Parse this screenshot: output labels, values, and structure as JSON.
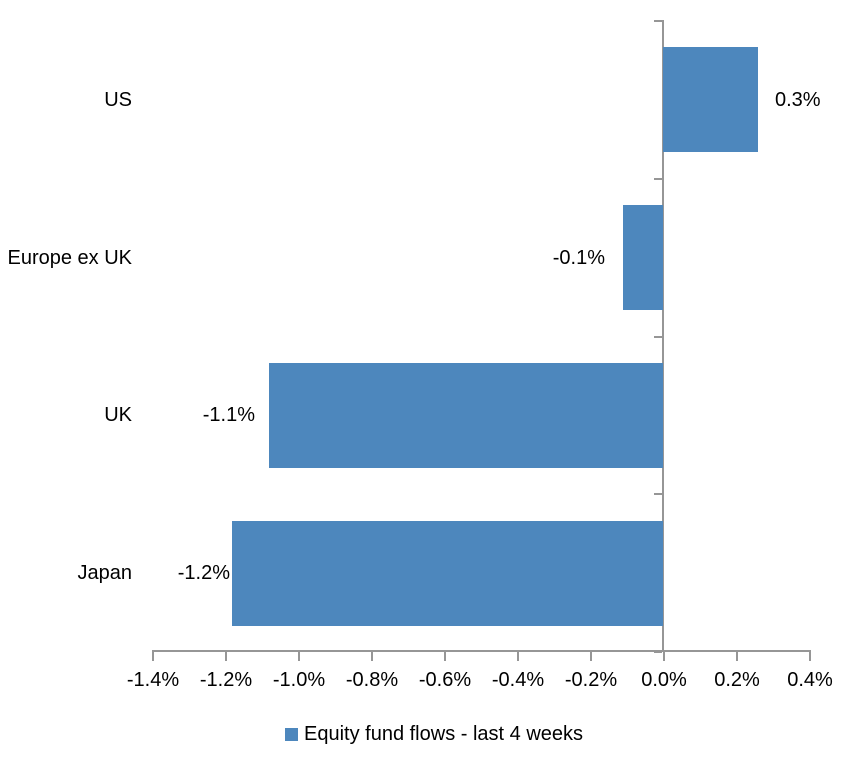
{
  "chart_data": {
    "type": "bar",
    "orientation": "horizontal",
    "title": "",
    "xlabel": "",
    "ylabel": "",
    "categories": [
      "US",
      "Europe ex UK",
      "UK",
      "Japan"
    ],
    "values": [
      0.3,
      -0.1,
      -1.1,
      -1.2
    ],
    "value_labels": [
      "0.3%",
      "-0.1%",
      "-1.1%",
      "-1.2%"
    ],
    "plotted_values": [
      0.26,
      -0.11,
      -1.08,
      -1.18
    ],
    "unit": "%",
    "xlim": [
      -1.4,
      0.4
    ],
    "x_ticks": [
      -1.4,
      -1.2,
      -1.0,
      -0.8,
      -0.6,
      -0.4,
      -0.2,
      0.0,
      0.2,
      0.4
    ],
    "x_tick_labels": [
      "-1.4%",
      "-1.2%",
      "-1.0%",
      "-0.8%",
      "-0.6%",
      "-0.4%",
      "-0.2%",
      "0.0%",
      "0.2%",
      "0.4%"
    ],
    "grid": false,
    "legend": {
      "position": "bottom",
      "entries": [
        {
          "label": "Equity fund flows - last 4 weeks",
          "color": "#4D87BD"
        }
      ]
    },
    "colors": {
      "bar": "#4D87BD",
      "axis": "#969696",
      "text": "#000000",
      "background": "#FFFFFF"
    }
  }
}
